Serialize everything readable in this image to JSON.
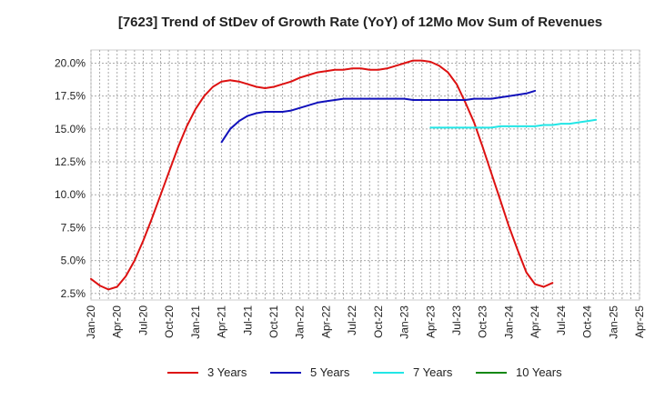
{
  "chart_data": {
    "type": "line",
    "title": "[7623]  Trend of StDev of Growth Rate (YoY) of 12Mo Mov Sum of Revenues",
    "xlabel": "",
    "ylabel": "",
    "ylim": [
      2.0,
      21.0
    ],
    "x_tick_labels": [
      "Jan-20",
      "Apr-20",
      "Jul-20",
      "Oct-20",
      "Jan-21",
      "Apr-21",
      "Jul-21",
      "Oct-21",
      "Jan-22",
      "Apr-22",
      "Jul-22",
      "Oct-22",
      "Jan-23",
      "Apr-23",
      "Jul-23",
      "Oct-23",
      "Jan-24",
      "Apr-24",
      "Jul-24",
      "Oct-24",
      "Jan-25",
      "Apr-25"
    ],
    "y_ticks": [
      2.5,
      5.0,
      7.5,
      10.0,
      12.5,
      15.0,
      17.5,
      20.0
    ],
    "y_tick_labels": [
      "2.5%",
      "5.0%",
      "7.5%",
      "10.0%",
      "12.5%",
      "15.0%",
      "17.5%",
      "20.0%"
    ],
    "grid": true,
    "legend_position": "bottom",
    "series": [
      {
        "name": "3 Years",
        "color": "#dd1111",
        "start_index": 0,
        "values": [
          3.6,
          3.1,
          2.8,
          3.0,
          3.8,
          5.0,
          6.5,
          8.2,
          10.0,
          11.8,
          13.6,
          15.2,
          16.5,
          17.5,
          18.2,
          18.6,
          18.7,
          18.6,
          18.4,
          18.2,
          18.1,
          18.2,
          18.4,
          18.6,
          18.9,
          19.1,
          19.3,
          19.4,
          19.5,
          19.5,
          19.6,
          19.6,
          19.5,
          19.5,
          19.6,
          19.8,
          20.0,
          20.2,
          20.2,
          20.1,
          19.8,
          19.3,
          18.4,
          17.0,
          15.5,
          13.6,
          11.6,
          9.6,
          7.6,
          5.8,
          4.1,
          3.2,
          3.0,
          3.3
        ]
      },
      {
        "name": "5 Years",
        "color": "#1111bb",
        "start_index": 15,
        "values": [
          14.0,
          15.0,
          15.6,
          16.0,
          16.2,
          16.3,
          16.3,
          16.3,
          16.4,
          16.6,
          16.8,
          17.0,
          17.1,
          17.2,
          17.3,
          17.3,
          17.3,
          17.3,
          17.3,
          17.3,
          17.3,
          17.3,
          17.2,
          17.2,
          17.2,
          17.2,
          17.2,
          17.2,
          17.2,
          17.3,
          17.3,
          17.3,
          17.4,
          17.5,
          17.6,
          17.7,
          17.9
        ]
      },
      {
        "name": "7 Years",
        "color": "#22e6e6",
        "start_index": 39,
        "values": [
          15.1,
          15.1,
          15.1,
          15.1,
          15.1,
          15.1,
          15.1,
          15.1,
          15.2,
          15.2,
          15.2,
          15.2,
          15.2,
          15.3,
          15.3,
          15.4,
          15.4,
          15.5,
          15.6,
          15.7
        ]
      },
      {
        "name": "10 Years",
        "color": "#118811",
        "start_index": 0,
        "values": []
      }
    ]
  }
}
